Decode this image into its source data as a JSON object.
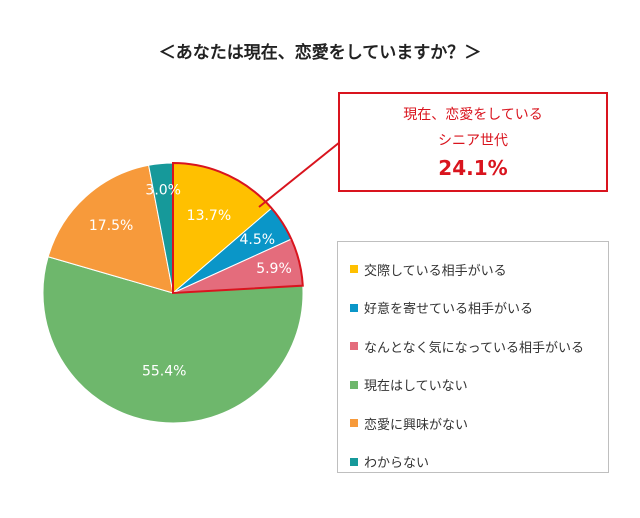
{
  "chart_data": {
    "type": "pie",
    "title": "＜あなたは現在、恋愛をしていますか？＞",
    "slices": [
      {
        "label": "交際している相手がいる",
        "value": 13.7,
        "value_label": "13.7%",
        "color": "#ffc000"
      },
      {
        "label": "好意を寄せている相手がいる",
        "value": 4.5,
        "value_label": "4.5%",
        "color": "#0a96c8"
      },
      {
        "label": "なんとなく気になっている相手がいる",
        "value": 5.9,
        "value_label": "5.9%",
        "color": "#e46c7c"
      },
      {
        "label": "現在はしていない",
        "value": 55.4,
        "value_label": "55.4%",
        "color": "#6eb76c"
      },
      {
        "label": "恋愛に興味がない",
        "value": 17.5,
        "value_label": "17.5%",
        "color": "#f79a3b"
      },
      {
        "label": "わからない",
        "value": 3.0,
        "value_label": "3.0%",
        "color": "#16999a"
      }
    ],
    "highlight": {
      "slices": [
        0,
        1,
        2
      ],
      "color": "#d9141e"
    },
    "legend_position": "right",
    "callout": {
      "line1": "現在、恋愛をしている",
      "line2": "シニア世代",
      "value": "24.1%"
    }
  }
}
